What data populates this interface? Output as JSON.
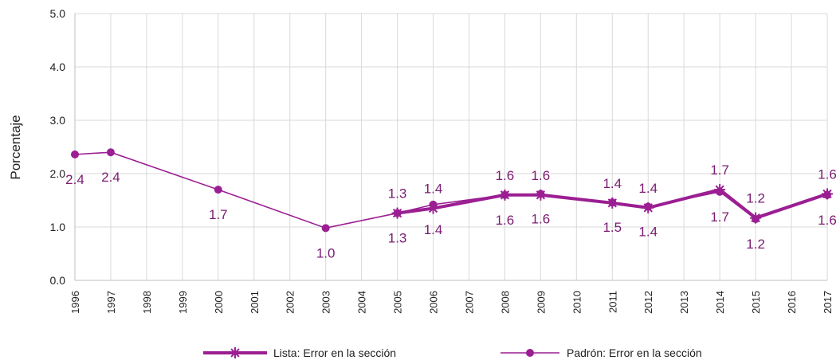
{
  "chart_data": {
    "type": "line",
    "title": "",
    "xlabel": "",
    "ylabel": "Porcentaje",
    "ylim": [
      0,
      5
    ],
    "yticks": [
      "0.0",
      "1.0",
      "2.0",
      "3.0",
      "4.0",
      "5.0"
    ],
    "xticks": [
      "1996",
      "1997",
      "1998",
      "1999",
      "2000",
      "2001",
      "2002",
      "2003",
      "2004",
      "2005",
      "2006",
      "2007",
      "2008",
      "2009",
      "2010",
      "2011",
      "2012",
      "2013",
      "2014",
      "2015",
      "2016",
      "2017"
    ],
    "grid": true,
    "legend_position": "bottom",
    "series": [
      {
        "name": "Lista: Error en la sección",
        "marker": "asterisk",
        "color": "#9b1f93",
        "x": [
          "2005",
          "2006",
          "2008",
          "2009",
          "2011",
          "2012",
          "2014",
          "2015",
          "2017"
        ],
        "values": [
          1.26,
          1.35,
          1.6,
          1.6,
          1.45,
          1.36,
          1.7,
          1.17,
          1.62
        ],
        "labels": [
          "1.3",
          "1.4",
          "1.6",
          "1.6",
          "1.4",
          "1.4",
          "1.7",
          "1.2",
          "1.6"
        ]
      },
      {
        "name": "Padrón: Error en la sección",
        "marker": "circle",
        "color": "#9b1f93",
        "x": [
          "1996",
          "1997",
          "2000",
          "2003",
          "2005",
          "2006",
          "2008",
          "2009",
          "2011",
          "2012",
          "2014",
          "2015",
          "2017"
        ],
        "values": [
          2.36,
          2.4,
          1.7,
          0.98,
          1.26,
          1.42,
          1.6,
          1.62,
          1.46,
          1.38,
          1.66,
          1.15,
          1.6
        ],
        "labels": [
          "2.4",
          "2.4",
          "1.7",
          "1.0",
          "1.3",
          "1.4",
          "1.6",
          "1.6",
          "1.5",
          "1.4",
          "1.7",
          "1.2",
          "1.6"
        ]
      }
    ]
  }
}
